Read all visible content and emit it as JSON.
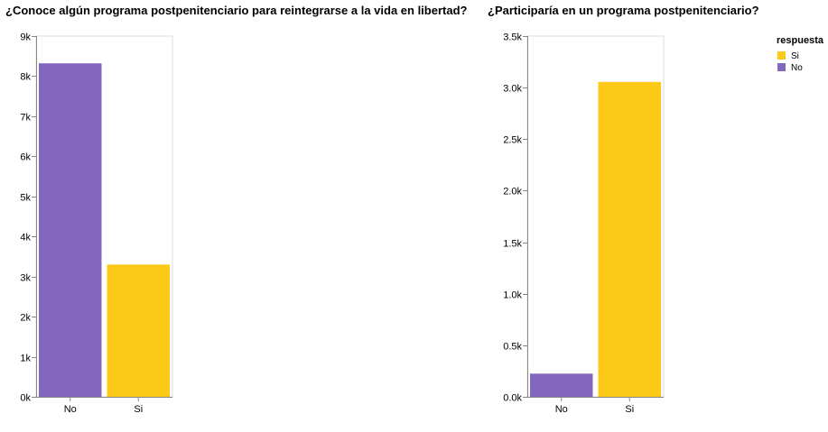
{
  "colors": {
    "Si": "#fdc918",
    "No": "#8367be",
    "axis": "#888888",
    "grid": "#dddddd",
    "frame": "#dddddd"
  },
  "legend": {
    "title": "respuesta",
    "placement": "top-right",
    "entries": [
      {
        "label": "Si",
        "color": "#fdc918"
      },
      {
        "label": "No",
        "color": "#8367be"
      }
    ]
  },
  "chart_data": [
    {
      "type": "bar",
      "title": "¿Conoce algún programa postpenitenciario para reintegrarse a la vida en libertad?",
      "xlabel": "",
      "ylabel": "",
      "categories": [
        "No",
        "Si"
      ],
      "values": [
        8320,
        3300
      ],
      "colors": [
        "#8367be",
        "#fdc918"
      ],
      "ylim": [
        0,
        9000
      ],
      "yticks": [
        0,
        1000,
        2000,
        3000,
        4000,
        5000,
        6000,
        7000,
        8000,
        9000
      ],
      "ytick_labels": [
        "0k",
        "1k",
        "2k",
        "3k",
        "4k",
        "5k",
        "6k",
        "7k",
        "8k",
        "9k"
      ],
      "grid": false
    },
    {
      "type": "bar",
      "title": "¿Participaría en un programa postpenitenciario?",
      "xlabel": "",
      "ylabel": "",
      "categories": [
        "No",
        "Si"
      ],
      "values": [
        225,
        3055
      ],
      "colors": [
        "#8367be",
        "#fdc918"
      ],
      "ylim": [
        0,
        3500
      ],
      "yticks": [
        0,
        500,
        1000,
        1500,
        2000,
        2500,
        3000,
        3500
      ],
      "ytick_labels": [
        "0.0k",
        "0.5k",
        "1.0k",
        "1.5k",
        "2.0k",
        "2.5k",
        "3.0k",
        "3.5k"
      ],
      "grid": false
    }
  ]
}
